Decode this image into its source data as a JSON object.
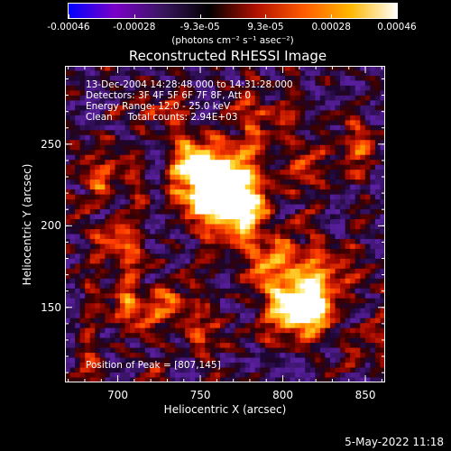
{
  "window": {
    "timestamp": "5-May-2022 11:18"
  },
  "colorbar": {
    "tick_labels": [
      "-0.00046",
      "-0.00028",
      "-9.3e-05",
      "9.3e-05",
      "0.00028",
      "0.00046"
    ],
    "unit_label": "(photons cm⁻² s⁻¹ asec⁻²)",
    "range": [
      -0.00046,
      0.00046
    ],
    "colors": [
      "#0000ff",
      "#7a00c8",
      "#3a1660",
      "#000000",
      "#b01000",
      "#ff5a00",
      "#ffb800",
      "#ffffff"
    ]
  },
  "chart_data": {
    "type": "heatmap",
    "title": "Reconstructed RHESSI Image",
    "xlabel": "Heliocentric X (arcsec)",
    "ylabel": "Heliocentric Y (arcsec)",
    "xlim": [
      668,
      862
    ],
    "ylim": [
      104,
      298
    ],
    "xticks": [
      "700",
      "750",
      "800",
      "850"
    ],
    "yticks": [
      "150",
      "200",
      "250"
    ],
    "xtick_values": [
      700,
      750,
      800,
      850
    ],
    "ytick_values": [
      150,
      200,
      250
    ],
    "peak_x": 807,
    "peak_y": 145,
    "annotations": {
      "time": "13-Dec-2004 14:28:48.000 to 14:31:28.000",
      "detectors": "Detectors: 3F 4F 5F 6F 7F 8F, Att 0",
      "energy": "Energy Range: 12.0 - 25.0 keV",
      "method": "Clean     Total counts: 2.94E+03",
      "peak": "Position of Peak = [807,145]"
    }
  }
}
